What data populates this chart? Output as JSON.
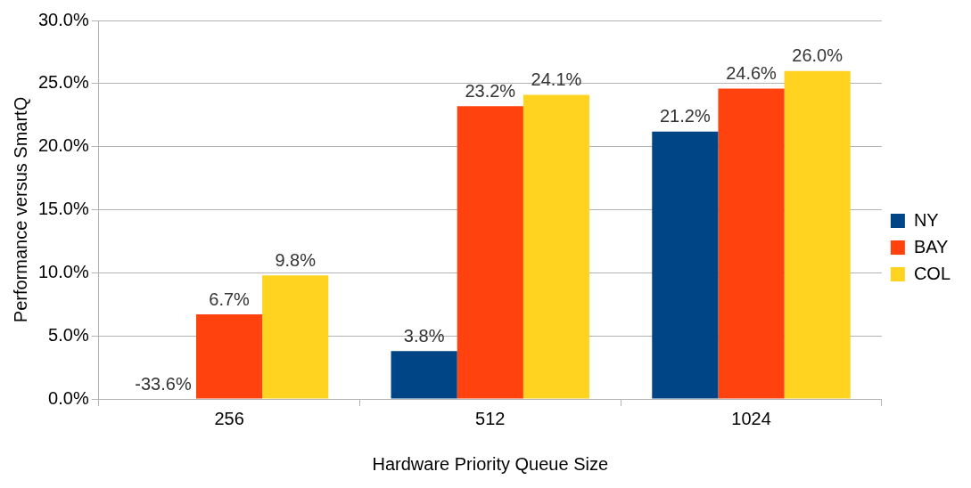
{
  "chart_data": {
    "type": "bar",
    "xlabel": "Hardware Priority Queue Size",
    "ylabel": "Performance versus SmartQ",
    "categories": [
      "256",
      "512",
      "1024"
    ],
    "series": [
      {
        "name": "NY",
        "color": "#004586",
        "values": [
          null,
          3.8,
          21.2
        ],
        "value_labels": [
          null,
          "3.8%",
          "21.2%"
        ]
      },
      {
        "name": "BAY",
        "color": "#ff420e",
        "values": [
          6.7,
          23.2,
          24.6
        ],
        "value_labels": [
          "6.7%",
          "23.2%",
          "24.6%"
        ]
      },
      {
        "name": "COL",
        "color": "#ffd320",
        "values": [
          9.8,
          24.1,
          26.0
        ],
        "value_labels": [
          "9.8%",
          "24.1%",
          "26.0%"
        ]
      }
    ],
    "annotations": [
      {
        "text": "-33.6%",
        "x": "256",
        "y": 0
      }
    ],
    "ylim": [
      0,
      30
    ],
    "yticks": [
      {
        "value": 0,
        "label": "0.0%"
      },
      {
        "value": 5,
        "label": "5.0%"
      },
      {
        "value": 10,
        "label": "10.0%"
      },
      {
        "value": 15,
        "label": "15.0%"
      },
      {
        "value": 20,
        "label": "20.0%"
      },
      {
        "value": 25,
        "label": "25.0%"
      },
      {
        "value": 30,
        "label": "30.0%"
      }
    ],
    "grid": "y",
    "legend": "right"
  }
}
